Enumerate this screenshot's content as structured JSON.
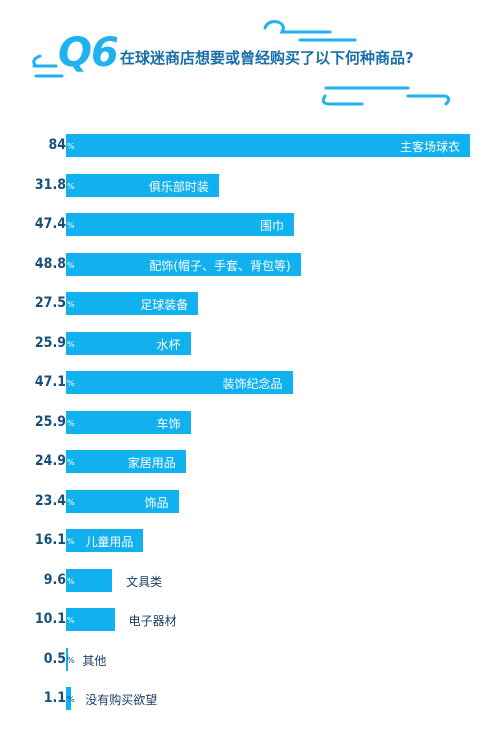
{
  "header": {
    "q_label": "Q6",
    "question": "在球迷商店想要或曾经购买了以下何种商品?"
  },
  "chart_data": {
    "type": "bar",
    "orientation": "horizontal",
    "unit": "%",
    "xlim": [
      0,
      84
    ],
    "colors": {
      "bar": "#11b0ee",
      "accent": "#1fb2ee"
    },
    "categories": [
      "主客场球衣",
      "俱乐部时装",
      "围巾",
      "配饰(帽子、手套、背包等)",
      "足球装备",
      "水杯",
      "装饰纪念品",
      "车饰",
      "家居用品",
      "饰品",
      "儿童用品",
      "文具类",
      "电子器材",
      "其他",
      "没有购买欲望"
    ],
    "value_labels": [
      "84",
      "31.8",
      "47.4",
      "48.8",
      "27.5",
      "25.9",
      "47.1",
      "25.9",
      "24.9",
      "23.4",
      "16.1",
      "9.6",
      "10.1",
      "0.5",
      "1.1"
    ],
    "values": [
      84,
      31.8,
      47.4,
      48.8,
      27.5,
      25.9,
      47.1,
      25.9,
      24.9,
      23.4,
      16.1,
      9.6,
      10.1,
      0.5,
      1.1
    ]
  }
}
